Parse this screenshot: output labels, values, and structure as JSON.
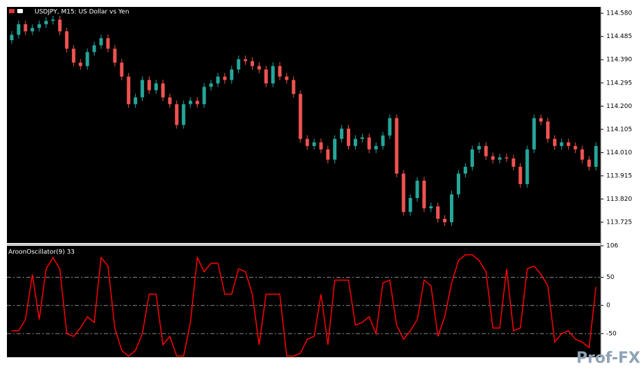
{
  "chart_data": [
    {
      "type": "candlestick",
      "title": "USDJPY, M15:  US Dollar vs Yen",
      "up_color": "#26a69a",
      "down_color": "#ef5350",
      "open": [
        114.47,
        114.492,
        114.535,
        114.506,
        114.52,
        114.535,
        114.549,
        114.554,
        114.506,
        114.435,
        114.378,
        114.364,
        114.421,
        114.449,
        114.478,
        114.435,
        114.378,
        114.321,
        114.208,
        114.236,
        114.307,
        114.265,
        114.293,
        114.236,
        114.208,
        114.123,
        114.208,
        114.222,
        114.208,
        114.279,
        114.293,
        114.321,
        114.307,
        114.35,
        114.392,
        114.384,
        114.364,
        114.35,
        114.293,
        114.364,
        114.321,
        114.307,
        114.25,
        114.066,
        114.037,
        114.052,
        114.023,
        113.981,
        114.066,
        114.108,
        114.037,
        114.066,
        114.072,
        114.023,
        114.037,
        114.08,
        114.151,
        113.924,
        113.767,
        113.824,
        113.895,
        113.782,
        113.79,
        113.739,
        113.725,
        113.839,
        113.924,
        113.952,
        114.023,
        114.037,
        113.995,
        113.981,
        113.99,
        113.986,
        113.952,
        113.881,
        114.023,
        114.151,
        114.137,
        114.066,
        114.037,
        114.052,
        114.037,
        114.023,
        113.981,
        113.952
      ],
      "high": [
        114.507,
        114.55,
        114.55,
        114.535,
        114.55,
        114.564,
        114.569,
        114.569,
        114.521,
        114.45,
        114.393,
        114.436,
        114.464,
        114.493,
        114.493,
        114.45,
        114.393,
        114.336,
        114.251,
        114.322,
        114.322,
        114.308,
        114.308,
        114.251,
        114.223,
        114.223,
        114.237,
        114.237,
        114.294,
        114.308,
        114.336,
        114.336,
        114.365,
        114.407,
        114.407,
        114.399,
        114.379,
        114.365,
        114.379,
        114.379,
        114.336,
        114.322,
        114.265,
        114.081,
        114.067,
        114.067,
        114.038,
        114.081,
        114.123,
        114.123,
        114.081,
        114.087,
        114.087,
        114.052,
        114.095,
        114.166,
        114.166,
        113.939,
        113.839,
        113.91,
        113.91,
        113.805,
        113.805,
        113.754,
        113.854,
        113.939,
        113.967,
        114.038,
        114.052,
        114.052,
        114.01,
        114.005,
        114.005,
        114.001,
        113.967,
        114.038,
        114.166,
        114.166,
        114.152,
        114.081,
        114.067,
        114.067,
        114.052,
        114.038,
        113.996,
        114.052
      ],
      "low": [
        114.455,
        114.477,
        114.491,
        114.491,
        114.505,
        114.52,
        114.534,
        114.491,
        114.42,
        114.363,
        114.349,
        114.349,
        114.406,
        114.434,
        114.42,
        114.363,
        114.306,
        114.193,
        114.193,
        114.221,
        114.25,
        114.25,
        114.221,
        114.193,
        114.108,
        114.108,
        114.193,
        114.193,
        114.193,
        114.264,
        114.278,
        114.292,
        114.292,
        114.335,
        114.369,
        114.349,
        114.335,
        114.278,
        114.278,
        114.306,
        114.292,
        114.235,
        114.051,
        114.022,
        114.022,
        114.008,
        113.966,
        113.966,
        114.051,
        114.022,
        114.022,
        114.051,
        114.008,
        114.008,
        114.022,
        114.065,
        113.909,
        113.752,
        113.752,
        113.809,
        113.767,
        113.767,
        113.724,
        113.71,
        113.71,
        113.824,
        113.909,
        113.937,
        114.008,
        113.98,
        113.966,
        113.966,
        113.971,
        113.937,
        113.866,
        113.866,
        114.008,
        114.122,
        114.051,
        114.022,
        114.022,
        114.022,
        114.008,
        113.966,
        113.937,
        113.937
      ],
      "close": [
        114.492,
        114.535,
        114.506,
        114.52,
        114.535,
        114.549,
        114.554,
        114.506,
        114.435,
        114.378,
        114.364,
        114.421,
        114.449,
        114.478,
        114.435,
        114.378,
        114.321,
        114.208,
        114.236,
        114.307,
        114.265,
        114.293,
        114.236,
        114.208,
        114.123,
        114.208,
        114.222,
        114.208,
        114.279,
        114.293,
        114.321,
        114.307,
        114.35,
        114.392,
        114.384,
        114.364,
        114.35,
        114.293,
        114.364,
        114.321,
        114.307,
        114.25,
        114.066,
        114.037,
        114.052,
        114.023,
        113.981,
        114.066,
        114.108,
        114.037,
        114.066,
        114.072,
        114.023,
        114.037,
        114.08,
        114.151,
        113.924,
        113.767,
        113.824,
        113.895,
        113.782,
        113.79,
        113.739,
        113.725,
        113.839,
        113.924,
        113.952,
        114.023,
        114.037,
        113.995,
        113.981,
        113.99,
        113.986,
        113.952,
        113.881,
        114.023,
        114.151,
        114.137,
        114.066,
        114.037,
        114.052,
        114.037,
        114.023,
        113.981,
        113.952,
        114.037
      ],
      "ylim": [
        113.64,
        114.606
      ],
      "yticks": [
        {
          "value": 114.58,
          "label": "114.580"
        },
        {
          "value": 114.485,
          "label": "114.485"
        },
        {
          "value": 114.39,
          "label": "114.390"
        },
        {
          "value": 114.295,
          "label": "114.295"
        },
        {
          "value": 114.2,
          "label": "114.200"
        },
        {
          "value": 114.105,
          "label": "114.105"
        },
        {
          "value": 114.01,
          "label": "114.010"
        },
        {
          "value": 113.915,
          "label": "113.915"
        },
        {
          "value": 113.82,
          "label": "113.820"
        },
        {
          "value": 113.725,
          "label": "113.725"
        }
      ]
    },
    {
      "type": "line",
      "title": "AroonOscillator(9) 33",
      "series": [
        {
          "color": "#ff0000",
          "values": [
            -45,
            -45,
            -25,
            55,
            -25,
            65,
            85,
            65,
            -50,
            -55,
            -40,
            -20,
            -30,
            85,
            70,
            -40,
            -80,
            -90,
            -80,
            -50,
            20,
            20,
            -70,
            -55,
            -90,
            -90,
            -30,
            85,
            60,
            75,
            75,
            20,
            20,
            65,
            60,
            20,
            -70,
            20,
            20,
            20,
            -90,
            -90,
            -85,
            -60,
            -55,
            20,
            -70,
            45,
            45,
            45,
            -35,
            -30,
            -20,
            -50,
            40,
            45,
            -35,
            -60,
            -45,
            -25,
            45,
            35,
            -55,
            -20,
            40,
            80,
            90,
            90,
            80,
            60,
            -40,
            -40,
            65,
            -45,
            -40,
            65,
            70,
            55,
            35,
            -65,
            -50,
            -45,
            -60,
            -65,
            -75,
            33
          ]
        }
      ],
      "ylim": [
        -92,
        106
      ],
      "yticks": [
        106,
        50,
        0,
        -50
      ],
      "grid_values": [
        50,
        0,
        -50
      ]
    }
  ],
  "watermark": "Prof-FX"
}
